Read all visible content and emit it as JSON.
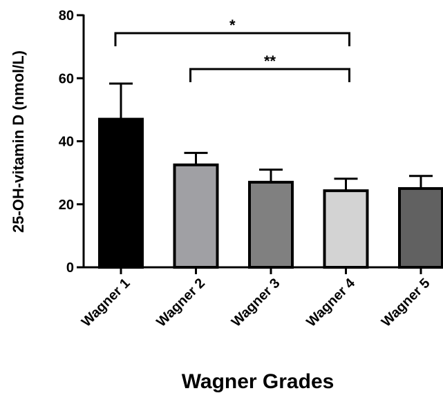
{
  "chart_data": {
    "type": "bar",
    "title": "",
    "xlabel": "Wagner Grades",
    "ylabel": "25-OH-vitamin D (nmol/L)",
    "ylim": [
      0,
      80
    ],
    "yticks": [
      "0",
      "20",
      "40",
      "60",
      "80"
    ],
    "categories": [
      "Wagner 1",
      "Wagner 2",
      "Wagner 3",
      "Wagner 4",
      "Wagner 5"
    ],
    "values": [
      47,
      32.5,
      27,
      24.3,
      25
    ],
    "errors": [
      11.3,
      3.8,
      4,
      3.8,
      4
    ],
    "colors": [
      "#000000",
      "#a0a0a4",
      "#808080",
      "#d3d3d3",
      "#616161"
    ],
    "grid": false,
    "significance": [
      {
        "from": 0,
        "to": 3,
        "label": "*"
      },
      {
        "from": 1,
        "to": 3,
        "label": "**"
      }
    ]
  }
}
